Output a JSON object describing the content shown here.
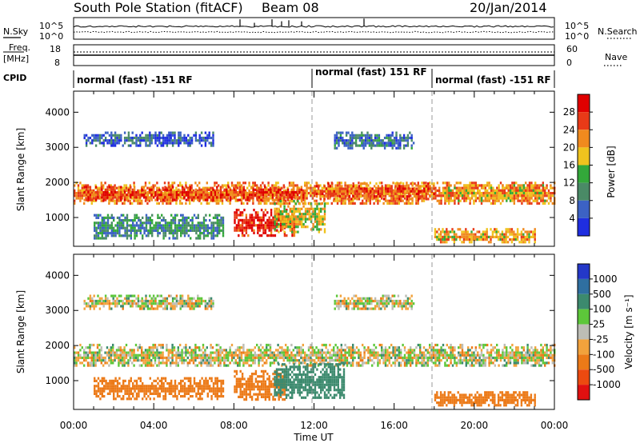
{
  "header": {
    "station": "South Pole Station (fitACF)",
    "beam": "Beam 08",
    "date": "20/Jan/2014"
  },
  "noise_panel": {
    "left_label": "N.Sky",
    "right_label": "N.Search",
    "ticks_left": [
      "10^5",
      "10^0"
    ],
    "ticks_right": [
      "10^5",
      "10^0"
    ]
  },
  "freq_panel": {
    "left_label_line1": "Freq.",
    "left_label_line2": "[MHz]",
    "left_ticks": [
      "18",
      "8"
    ],
    "right_label": "Nave",
    "right_ticks": [
      "60",
      "0"
    ]
  },
  "cpid": {
    "label": "CPID",
    "segments": [
      {
        "start_hour": 0,
        "text": "normal (fast) -151 RF"
      },
      {
        "start_hour": 12,
        "text": "normal (fast) 151 RF"
      },
      {
        "start_hour": 18,
        "text": "normal (fast) -151 RF"
      }
    ]
  },
  "axes": {
    "ylabel": "Slant Range [km]",
    "xlabel": "Time UT",
    "yticks": [
      "1000",
      "2000",
      "3000",
      "4000"
    ],
    "xticks": [
      "00:00",
      "04:00",
      "08:00",
      "12:00",
      "16:00",
      "20:00",
      "00:00"
    ]
  },
  "power_colorbar": {
    "title": "Power [dB]",
    "labels": [
      "4",
      "8",
      "12",
      "16",
      "20",
      "24",
      "28"
    ],
    "colors": [
      "#1f2ee0",
      "#3c62c4",
      "#4a8a66",
      "#33a83a",
      "#efc31e",
      "#f08a1e",
      "#e83a18",
      "#e00000"
    ]
  },
  "velocity_colorbar": {
    "title": "Velocity [m s⁻¹]",
    "labels": [
      "1000",
      "500",
      "100",
      "25",
      "-25",
      "-100",
      "-500",
      "-1000"
    ],
    "colors": [
      "#2438c8",
      "#2f6fa0",
      "#3c8a6e",
      "#5dc73a",
      "#bdbdb5",
      "#f2a23c",
      "#ec7a18",
      "#ec4a10",
      "#e01010"
    ]
  },
  "chart_data": [
    {
      "type": "heatmap",
      "title": "Power [dB]",
      "xlabel": "Time UT",
      "ylabel": "Slant Range [km]",
      "xlim_hours": [
        0,
        24
      ],
      "ylim_km": [
        180,
        4600
      ],
      "dashed_lines_hours": [
        12,
        18
      ],
      "bands": [
        {
          "t0": 0.0,
          "t1": 24.0,
          "r0": 1380,
          "r1": 2020,
          "value_db": 22
        },
        {
          "t0": 0.5,
          "t1": 11.5,
          "r0": 1480,
          "r1": 1900,
          "value_db": 26
        },
        {
          "t0": 12.0,
          "t1": 18.0,
          "r0": 1560,
          "r1": 2000,
          "value_db": 24
        },
        {
          "t0": 18.5,
          "t1": 23.5,
          "r0": 1500,
          "r1": 1950,
          "value_db": 20
        },
        {
          "t0": 0.5,
          "t1": 7.0,
          "r0": 3050,
          "r1": 3450,
          "value_db": 6
        },
        {
          "t0": 13.0,
          "t1": 17.0,
          "r0": 3000,
          "r1": 3450,
          "value_db": 8
        },
        {
          "t0": 8.0,
          "t1": 11.0,
          "r0": 450,
          "r1": 1250,
          "value_db": 28
        },
        {
          "t0": 10.0,
          "t1": 12.5,
          "r0": 600,
          "r1": 1500,
          "value_db": 18
        },
        {
          "t0": 1.0,
          "t1": 7.5,
          "r0": 400,
          "r1": 1100,
          "value_db": 10
        },
        {
          "t0": 18.0,
          "t1": 23.0,
          "r0": 300,
          "r1": 700,
          "value_db": 20
        }
      ]
    },
    {
      "type": "heatmap",
      "title": "Velocity [m s⁻¹]",
      "xlabel": "Time UT",
      "ylabel": "Slant Range [km]",
      "xlim_hours": [
        0,
        24
      ],
      "ylim_km": [
        180,
        4600
      ],
      "dashed_lines_hours": [
        12,
        18
      ],
      "bands": [
        {
          "t0": 0.0,
          "t1": 24.0,
          "r0": 1400,
          "r1": 2050,
          "value_ms": 0
        },
        {
          "t0": 0.5,
          "t1": 7.0,
          "r0": 3050,
          "r1": 3450,
          "value_ms": 0
        },
        {
          "t0": 13.0,
          "t1": 17.0,
          "r0": 3050,
          "r1": 3450,
          "value_ms": 0
        },
        {
          "t0": 1.0,
          "t1": 7.5,
          "r0": 500,
          "r1": 1100,
          "value_ms": -250
        },
        {
          "t0": 8.0,
          "t1": 10.5,
          "r0": 450,
          "r1": 1300,
          "value_ms": -300
        },
        {
          "t0": 10.0,
          "t1": 13.5,
          "r0": 500,
          "r1": 1500,
          "value_ms": 300
        },
        {
          "t0": 18.0,
          "t1": 23.0,
          "r0": 300,
          "r1": 700,
          "value_ms": -250
        }
      ]
    }
  ]
}
